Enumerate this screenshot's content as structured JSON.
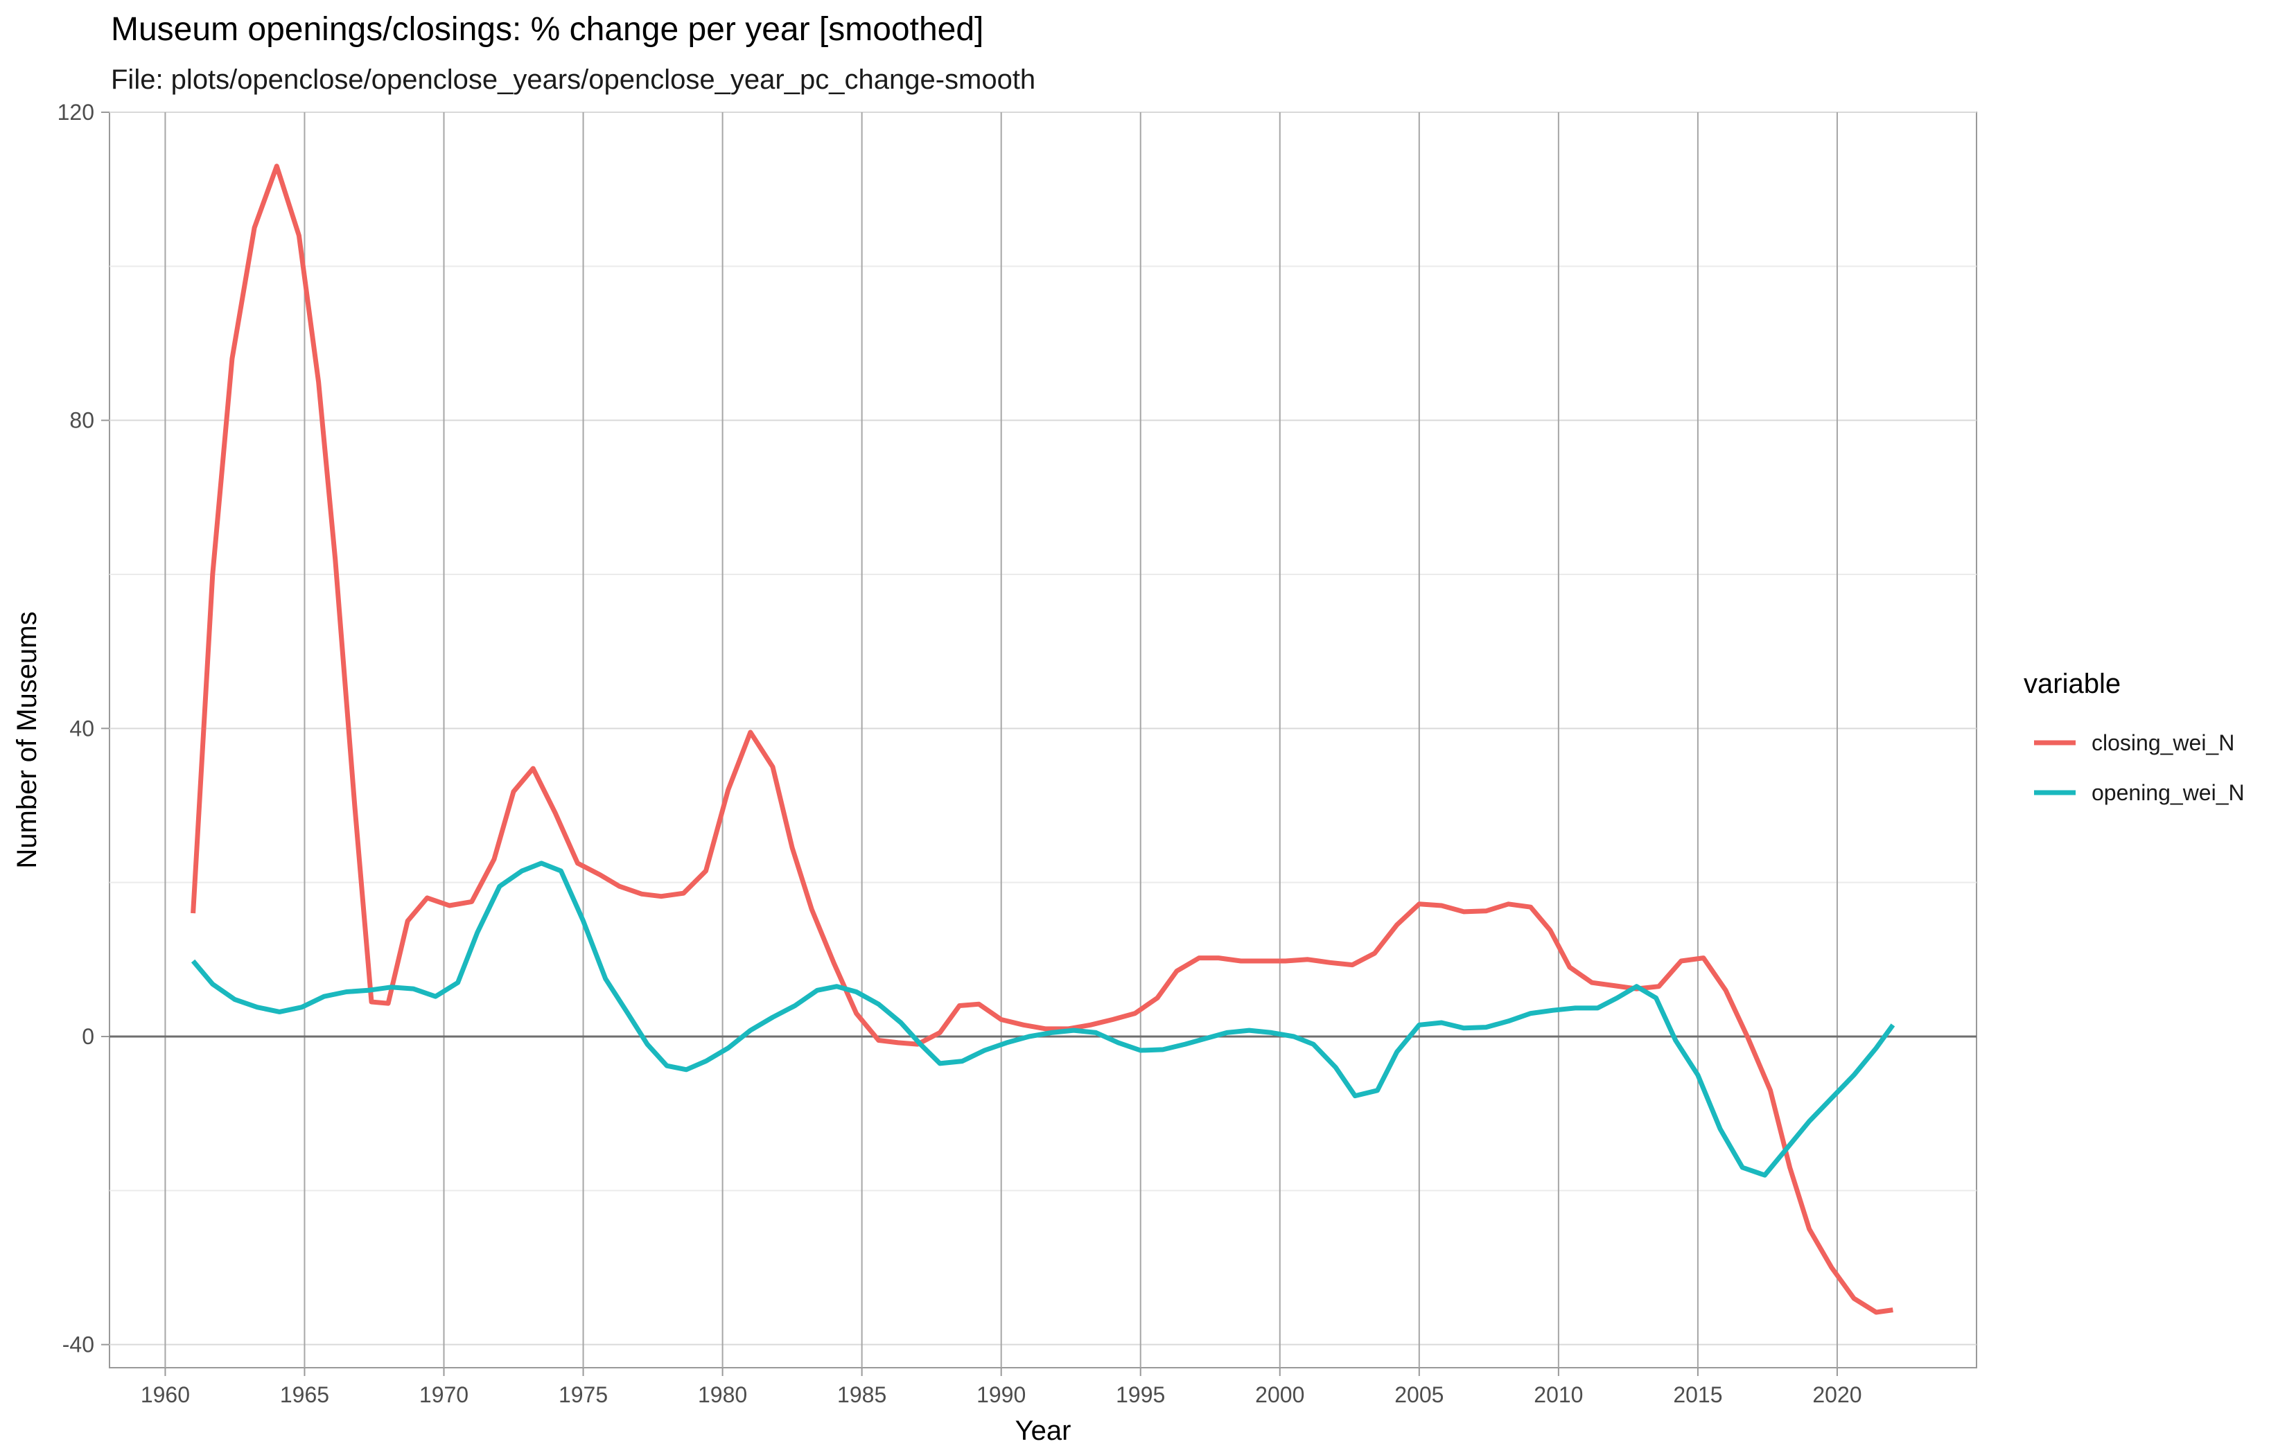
{
  "chart_data": {
    "type": "line",
    "title": "Museum openings/closings: % change per year [smoothed]",
    "subtitle": "File: plots/openclose/openclose_years/openclose_year_pc_change-smooth",
    "xlabel": "Year",
    "ylabel": "Number of Museums",
    "xlim": [
      1958,
      2025
    ],
    "ylim": [
      -43,
      120
    ],
    "x_ticks": [
      1960,
      1965,
      1970,
      1975,
      1980,
      1985,
      1990,
      1995,
      2000,
      2005,
      2010,
      2015,
      2020
    ],
    "x_tick_labels": [
      "1960",
      "1965",
      "1970",
      "1975",
      "1980",
      "1985",
      "1990",
      "1995",
      "2000",
      "2005",
      "2010",
      "2015",
      "2020"
    ],
    "y_ticks": [
      -40,
      0,
      40,
      80,
      120
    ],
    "y_tick_labels": [
      "-40",
      "0",
      "40",
      "80",
      "120"
    ],
    "y_minor_ticks": [
      -20,
      20,
      60,
      100
    ],
    "grid": true,
    "zero_line": true,
    "legend": {
      "title": "variable",
      "placement": "right"
    },
    "series": [
      {
        "name": "closing_wei_N",
        "color": "#F0625D",
        "x": [
          1961,
          1961.7,
          1962.4,
          1963.2,
          1964,
          1964.8,
          1965.5,
          1966.1,
          1966.8,
          1967.4,
          1968,
          1968.7,
          1969.4,
          1970.2,
          1971,
          1971.8,
          1972.5,
          1973.2,
          1974,
          1974.8,
          1975.6,
          1976.3,
          1977.1,
          1977.8,
          1978.6,
          1979.4,
          1980.2,
          1981,
          1981.8,
          1982.5,
          1983.2,
          1984,
          1984.8,
          1985.6,
          1986.3,
          1987,
          1987.8,
          1988.5,
          1989.2,
          1990,
          1990.8,
          1991.6,
          1992.4,
          1993.2,
          1994,
          1994.8,
          1995.6,
          1996.3,
          1997.1,
          1997.8,
          1998.6,
          1999.4,
          2000.2,
          2001,
          2001.8,
          2002.6,
          2003.4,
          2004.2,
          2005,
          2005.8,
          2006.6,
          2007.4,
          2008.2,
          2009,
          2009.7,
          2010.4,
          2011.2,
          2012,
          2012.8,
          2013.6,
          2014.4,
          2015.2,
          2016,
          2016.8,
          2017.6,
          2018.3,
          2019,
          2019.8,
          2020.6,
          2021.4,
          2022
        ],
        "y": [
          16,
          60,
          88,
          105,
          113,
          104,
          85,
          62,
          30,
          4.5,
          4.3,
          15,
          18,
          17,
          17.5,
          23,
          31.8,
          34.8,
          29,
          22.5,
          21,
          19.5,
          18.5,
          18.2,
          18.6,
          21.5,
          32,
          39.5,
          35,
          24.5,
          16.5,
          9.5,
          3,
          -0.5,
          -0.8,
          -1,
          0.5,
          4,
          4.2,
          2.2,
          1.5,
          1,
          1,
          1.5,
          2.2,
          3,
          5,
          8.5,
          10.2,
          10.2,
          9.8,
          9.8,
          9.8,
          10,
          9.6,
          9.3,
          10.8,
          14.5,
          17.2,
          17,
          16.2,
          16.3,
          17.2,
          16.8,
          13.8,
          9,
          7,
          6.6,
          6.2,
          6.5,
          9.8,
          10.2,
          6,
          -0.2,
          -7,
          -17,
          -25,
          -30,
          -34,
          -35.8,
          -35.5
        ]
      },
      {
        "name": "opening_wei_N",
        "color": "#1AB8BE",
        "x": [
          1961,
          1961.7,
          1962.5,
          1963.3,
          1964.1,
          1964.9,
          1965.7,
          1966.5,
          1967.3,
          1968.1,
          1968.9,
          1969.7,
          1970.5,
          1971.2,
          1972,
          1972.8,
          1973.5,
          1974.2,
          1975,
          1975.8,
          1976.6,
          1977.3,
          1978,
          1978.7,
          1979.4,
          1980.2,
          1981,
          1981.8,
          1982.6,
          1983.4,
          1984.1,
          1984.8,
          1985.6,
          1986.4,
          1987.1,
          1987.8,
          1988.6,
          1989.4,
          1990.2,
          1991,
          1991.8,
          1992.6,
          1993.4,
          1994.2,
          1995,
          1995.8,
          1996.6,
          1997.3,
          1998.1,
          1998.9,
          1999.7,
          2000.5,
          2001.2,
          2002,
          2002.7,
          2003.5,
          2004.2,
          2005,
          2005.8,
          2006.6,
          2007.4,
          2008.2,
          2009,
          2009.8,
          2010.6,
          2011.4,
          2012.1,
          2012.8,
          2013.5,
          2014.2,
          2015,
          2015.8,
          2016.6,
          2017.4,
          2018.2,
          2019,
          2019.8,
          2020.6,
          2021.4,
          2022
        ],
        "y": [
          9.8,
          6.8,
          4.8,
          3.8,
          3.2,
          3.8,
          5.2,
          5.8,
          6,
          6.4,
          6.2,
          5.2,
          7,
          13.5,
          19.5,
          21.5,
          22.5,
          21.5,
          15,
          7.5,
          3,
          -1,
          -3.8,
          -4.3,
          -3.2,
          -1.5,
          0.8,
          2.5,
          4,
          6,
          6.5,
          5.8,
          4.2,
          1.8,
          -1,
          -3.5,
          -3.2,
          -1.8,
          -0.8,
          0,
          0.5,
          0.8,
          0.5,
          -0.8,
          -1.8,
          -1.7,
          -1,
          -0.3,
          0.5,
          0.8,
          0.5,
          0,
          -1,
          -4,
          -7.7,
          -7,
          -2,
          1.5,
          1.8,
          1.1,
          1.2,
          2,
          3,
          3.4,
          3.7,
          3.7,
          5,
          6.5,
          5,
          -0.5,
          -5,
          -12,
          -17,
          -18,
          -14.5,
          -11,
          -8,
          -5,
          -1.5,
          1.5
        ]
      }
    ]
  }
}
